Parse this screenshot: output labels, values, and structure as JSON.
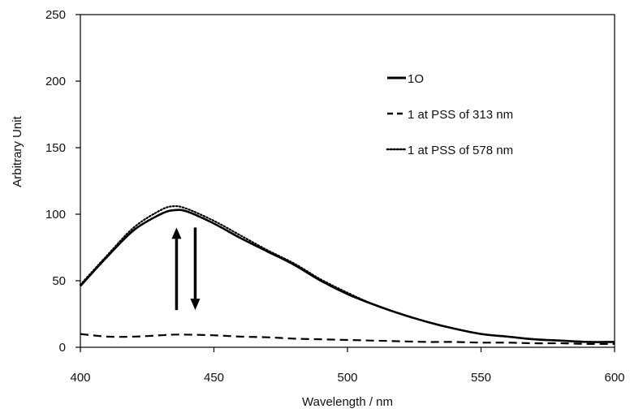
{
  "chart_data": {
    "type": "line",
    "xlabel": "Wavelength / nm",
    "ylabel": "Arbitrary Unit",
    "xlim": [
      400,
      600
    ],
    "ylim": [
      0,
      250
    ],
    "x_ticks": [
      "400",
      "450",
      "500",
      "550",
      "600"
    ],
    "y_ticks": [
      "0",
      "50",
      "100",
      "150",
      "200",
      "250"
    ],
    "grid": false,
    "legend_position": "top-right",
    "x": [
      400,
      410,
      420,
      430,
      435,
      440,
      450,
      460,
      470,
      480,
      490,
      500,
      510,
      520,
      530,
      540,
      550,
      560,
      570,
      580,
      590,
      600
    ],
    "series": [
      {
        "name": "1O",
        "style": "solid",
        "values": [
          46,
          68,
          88,
          100,
          103,
          102,
          93,
          82,
          72,
          62,
          50,
          40,
          32,
          25,
          19,
          14,
          10,
          8,
          6,
          5,
          4,
          4
        ]
      },
      {
        "name": "1 at PSS of 313 nm",
        "style": "dashed",
        "values": [
          10,
          8,
          8,
          9,
          9.5,
          9.5,
          9,
          8,
          7.5,
          6.5,
          6,
          5.5,
          5,
          4.5,
          4,
          4,
          3.5,
          3.5,
          3,
          3,
          2.5,
          2.5
        ]
      },
      {
        "name": "1 at PSS of 578 nm",
        "style": "dotted",
        "values": [
          47,
          69,
          90,
          103,
          106,
          104,
          95,
          84,
          73,
          63,
          51,
          41,
          32,
          25,
          19,
          14,
          10,
          8,
          6,
          5,
          4,
          4
        ]
      }
    ],
    "annotations": [
      {
        "type": "arrow",
        "direction": "up",
        "x": 436,
        "y_from": 28,
        "y_to": 90
      },
      {
        "type": "arrow",
        "direction": "down",
        "x": 443,
        "y_from": 90,
        "y_to": 28
      }
    ],
    "colors": {
      "line": "#000000",
      "axis": "#000000",
      "background": "#ffffff"
    }
  }
}
